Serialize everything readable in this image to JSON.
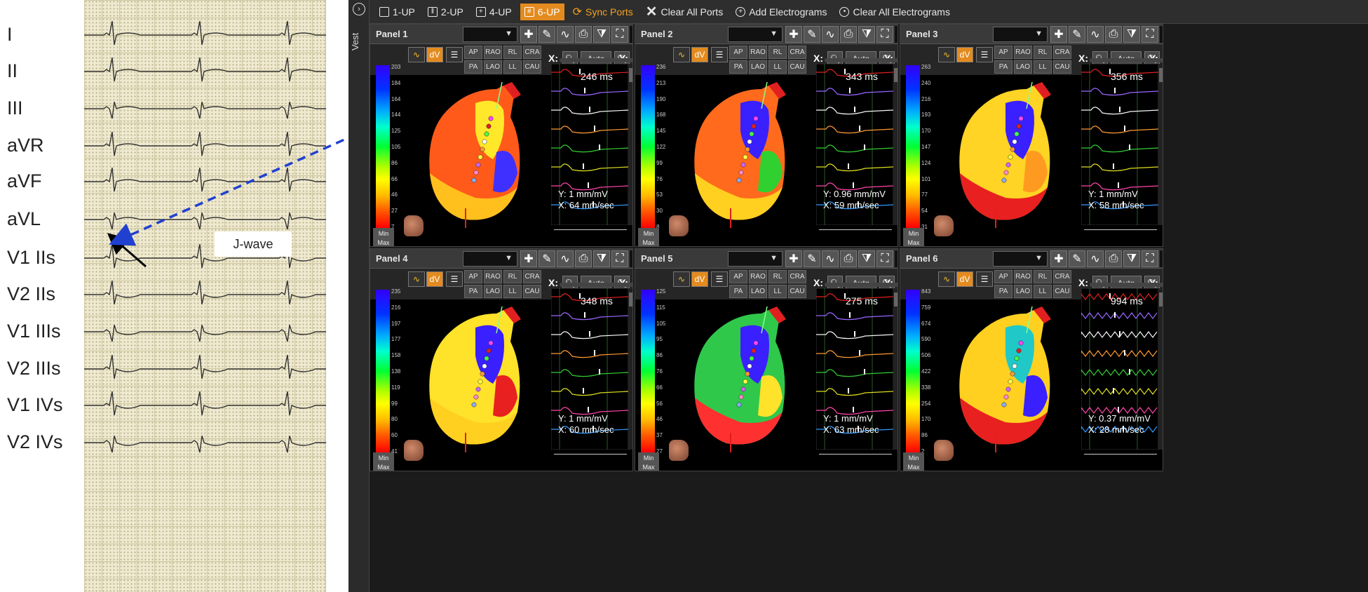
{
  "ecg": {
    "leads": [
      "I",
      "II",
      "III",
      "aVR",
      "aVF",
      "aVL",
      "V1 IIs",
      "V2 IIs",
      "V1 IIIs",
      "V2 IIIs",
      "V1 IVs",
      "V2 IVs"
    ],
    "callout": "J-wave"
  },
  "app": {
    "side_label": "Vest",
    "toolbar": {
      "layout_1": "1-UP",
      "layout_2": "2-UP",
      "layout_4": "4-UP",
      "layout_6": "6-UP",
      "sync": "Sync Ports",
      "clear_ports": "Clear All Ports",
      "add_egm": "Add Electrograms",
      "clear_egm": "Clear All Electrograms"
    },
    "view_buttons": [
      "AP",
      "RAO",
      "RL",
      "CRA",
      "PA",
      "LAO",
      "LL",
      "CAU"
    ],
    "axis": {
      "x": "X:",
      "y": "Y:",
      "auto": "Auto"
    },
    "minmax": [
      "Min",
      "Max"
    ],
    "panels": [
      {
        "title": "Panel 1",
        "ms": "246 ms",
        "y_scale": "Y: 1 mm/mV",
        "x_scale": "X: 64 mm/sec",
        "ticks": [
          "203",
          "184",
          "164",
          "144",
          "125",
          "105",
          "86",
          "66",
          "46",
          "27",
          "7"
        ],
        "variant": 1
      },
      {
        "title": "Panel 2",
        "ms": "343 ms",
        "y_scale": "Y: 0.96 mm/mV",
        "x_scale": "X: 59 mm/sec",
        "ticks": [
          "236",
          "213",
          "190",
          "168",
          "145",
          "122",
          "99",
          "76",
          "53",
          "30",
          "8"
        ],
        "variant": 2
      },
      {
        "title": "Panel 3",
        "ms": "356 ms",
        "y_scale": "Y: 1 mm/mV",
        "x_scale": "X: 58 mm/sec",
        "ticks": [
          "263",
          "240",
          "216",
          "193",
          "170",
          "147",
          "124",
          "101",
          "77",
          "54",
          "31"
        ],
        "variant": 3
      },
      {
        "title": "Panel 4",
        "ms": "348 ms",
        "y_scale": "Y: 1 mm/mV",
        "x_scale": "X: 60 mm/sec",
        "ticks": [
          "235",
          "216",
          "197",
          "177",
          "158",
          "138",
          "119",
          "99",
          "80",
          "60",
          "41"
        ],
        "variant": 4
      },
      {
        "title": "Panel 5",
        "ms": "275 ms",
        "y_scale": "Y: 1 mm/mV",
        "x_scale": "X: 63 mm/sec",
        "ticks": [
          "125",
          "115",
          "105",
          "95",
          "86",
          "76",
          "66",
          "56",
          "46",
          "37",
          "27"
        ],
        "variant": 5
      },
      {
        "title": "Panel 6",
        "ms": "994 ms",
        "y_scale": "Y: 0.37 mm/mV",
        "x_scale": "X: 28 mm/sec",
        "ticks": [
          "843",
          "759",
          "674",
          "590",
          "506",
          "422",
          "338",
          "254",
          "170",
          "86",
          "2"
        ],
        "variant": 6
      }
    ]
  },
  "colors": {
    "accent": "#e38b1f",
    "panel_bg": "#000000",
    "trace_colors": [
      "#e02020",
      "#9966ff",
      "#f5f5f5",
      "#ff9933",
      "#33cc33",
      "#dddd22",
      "#ff44aa",
      "#3399ff"
    ]
  }
}
